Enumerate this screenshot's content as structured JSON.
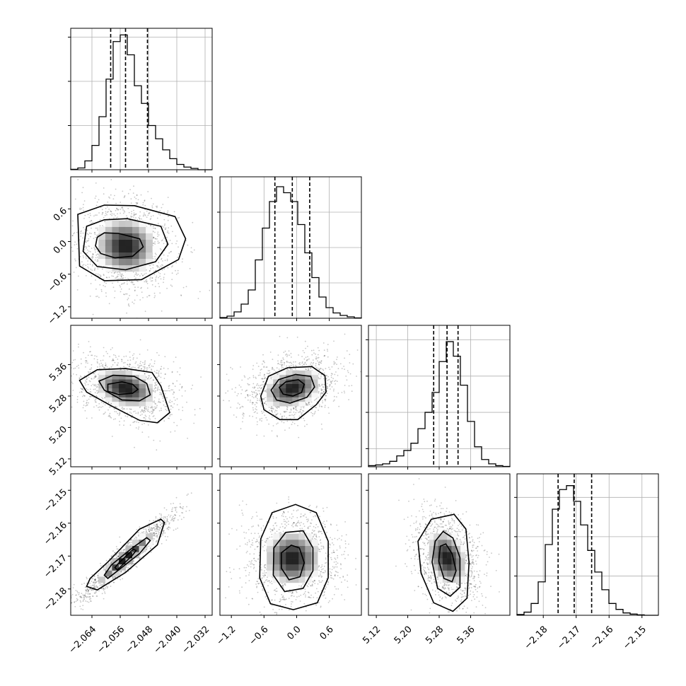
{
  "chart_data": {
    "type": "corner",
    "n_params": 4,
    "grid": true,
    "parameters": [
      {
        "index": 0,
        "range": [
          -2.07,
          -2.03
        ],
        "ticks": [
          -2.064,
          -2.056,
          -2.048,
          -2.04,
          -2.032
        ],
        "tick_labels": [
          "−2.064",
          "−2.056",
          "−2.048",
          "−2.040",
          "−2.032"
        ],
        "hist": {
          "bin_edges": [
            -2.07,
            -2.068,
            -2.066,
            -2.064,
            -2.062,
            -2.06,
            -2.058,
            -2.056,
            -2.054,
            -2.052,
            -2.05,
            -2.048,
            -2.046,
            -2.044,
            -2.042,
            -2.04,
            -2.038,
            -2.036,
            -2.034,
            -2.032,
            -2.03
          ],
          "counts": [
            1,
            4,
            20,
            55,
            120,
            205,
            290,
            305,
            260,
            190,
            150,
            100,
            70,
            45,
            25,
            12,
            6,
            3,
            0,
            0
          ],
          "y_ticks": [
            100,
            200,
            300
          ],
          "ymax": 320
        },
        "quantiles": [
          -2.0587,
          -2.0545,
          -2.0483
        ],
        "median": -2.0545
      },
      {
        "index": 1,
        "range": [
          -1.41,
          1.19
        ],
        "ticks": [
          -1.2,
          -0.6,
          0.0,
          0.6
        ],
        "tick_labels": [
          "−1.2",
          "−0.6",
          "0.0",
          "0.6"
        ],
        "hist": {
          "bin_edges": [
            -1.41,
            -1.28,
            -1.15,
            -1.02,
            -0.89,
            -0.76,
            -0.63,
            -0.5,
            -0.37,
            -0.24,
            -0.11,
            0.02,
            0.15,
            0.28,
            0.41,
            0.54,
            0.67,
            0.8,
            0.93,
            1.06,
            1.19
          ],
          "counts": [
            2,
            6,
            18,
            40,
            80,
            165,
            255,
            330,
            372,
            355,
            330,
            265,
            185,
            115,
            60,
            30,
            15,
            8,
            4,
            1
          ],
          "y_ticks": [
            100,
            200,
            300
          ],
          "ymax": 400
        },
        "quantiles": [
          -0.4,
          -0.08,
          0.24
        ],
        "median": -0.08
      },
      {
        "index": 2,
        "range": [
          5.1,
          5.46
        ],
        "ticks": [
          5.12,
          5.2,
          5.28,
          5.36
        ],
        "tick_labels": [
          "5.12",
          "5.20",
          "5.28",
          "5.36"
        ],
        "hist": {
          "bin_edges": [
            5.1,
            5.118,
            5.136,
            5.154,
            5.172,
            5.19,
            5.208,
            5.226,
            5.244,
            5.262,
            5.28,
            5.298,
            5.316,
            5.334,
            5.352,
            5.37,
            5.388,
            5.406,
            5.424,
            5.442,
            5.46
          ],
          "counts": [
            3,
            5,
            8,
            15,
            30,
            45,
            65,
            105,
            150,
            205,
            290,
            345,
            305,
            225,
            125,
            55,
            20,
            8,
            3,
            1
          ],
          "y_ticks": [
            50,
            150,
            250,
            350
          ],
          "ymax": 390
        },
        "quantiles": [
          5.266,
          5.3,
          5.328
        ],
        "median": 5.3
      },
      {
        "index": 3,
        "range": [
          -2.188,
          -2.145
        ],
        "ticks": [
          -2.18,
          -2.17,
          -2.16,
          -2.15
        ],
        "tick_labels": [
          "−2.18",
          "−2.17",
          "−2.16",
          "−2.15"
        ],
        "hist": {
          "bin_edges": [
            -2.188,
            -2.18585,
            -2.1837,
            -2.18155,
            -2.1794,
            -2.17725,
            -2.1751,
            -2.17295,
            -2.1708,
            -2.16865,
            -2.1665,
            -2.16435,
            -2.1622,
            -2.16005,
            -2.1579,
            -2.15575,
            -2.1536,
            -2.15145,
            -2.1493,
            -2.14715,
            -2.145
          ],
          "counts": [
            2,
            8,
            30,
            85,
            180,
            270,
            320,
            330,
            290,
            230,
            165,
            110,
            65,
            30,
            15,
            6,
            3,
            1,
            0,
            0
          ],
          "y_ticks": [
            100,
            200,
            300
          ],
          "ymax": 360
        },
        "quantiles": [
          -2.1755,
          -2.1706,
          -2.1653
        ],
        "median": -2.1706
      }
    ],
    "pairs": [
      {
        "x_param": 0,
        "y_param": 1,
        "correlation": -0.05,
        "center": [
          -2.0545,
          -0.08
        ],
        "contours": [
          [
            [
              -2.0625,
              0.08
            ],
            [
              -2.0605,
              0.16
            ],
            [
              -2.0565,
              0.15
            ],
            [
              -2.0505,
              0.05
            ],
            [
              -2.0495,
              -0.1
            ],
            [
              -2.0525,
              -0.27
            ],
            [
              -2.0575,
              -0.3
            ],
            [
              -2.0615,
              -0.22
            ],
            [
              -2.063,
              -0.08
            ]
          ],
          [
            [
              -2.0655,
              0.28
            ],
            [
              -2.0605,
              0.4
            ],
            [
              -2.054,
              0.42
            ],
            [
              -2.0445,
              0.28
            ],
            [
              -2.0425,
              -0.05
            ],
            [
              -2.046,
              -0.37
            ],
            [
              -2.0545,
              -0.52
            ],
            [
              -2.0625,
              -0.46
            ],
            [
              -2.0665,
              -0.18
            ]
          ],
          [
            [
              -2.068,
              0.5
            ],
            [
              -2.0605,
              0.67
            ],
            [
              -2.052,
              0.66
            ],
            [
              -2.0405,
              0.46
            ],
            [
              -2.0375,
              0.05
            ],
            [
              -2.0395,
              -0.33
            ],
            [
              -2.05,
              -0.7
            ],
            [
              -2.0605,
              -0.72
            ],
            [
              -2.0675,
              -0.45
            ]
          ]
        ]
      },
      {
        "x_param": 0,
        "y_param": 2,
        "correlation": -0.3,
        "center": [
          -2.0545,
          5.3
        ],
        "contours": [
          [
            [
              -2.0595,
              5.31
            ],
            [
              -2.0555,
              5.316
            ],
            [
              -2.0525,
              5.31
            ],
            [
              -2.051,
              5.297
            ],
            [
              -2.0525,
              5.287
            ],
            [
              -2.0565,
              5.284
            ],
            [
              -2.0595,
              5.292
            ]
          ],
          [
            [
              -2.062,
              5.318
            ],
            [
              -2.058,
              5.333
            ],
            [
              -2.052,
              5.33
            ],
            [
              -2.0485,
              5.312
            ],
            [
              -2.0475,
              5.283
            ],
            [
              -2.0505,
              5.268
            ],
            [
              -2.0555,
              5.27
            ],
            [
              -2.0605,
              5.295
            ]
          ],
          [
            [
              -2.0675,
              5.32
            ],
            [
              -2.0625,
              5.347
            ],
            [
              -2.0545,
              5.35
            ],
            [
              -2.047,
              5.34
            ],
            [
              -2.0445,
              5.305
            ],
            [
              -2.043,
              5.265
            ],
            [
              -2.042,
              5.238
            ],
            [
              -2.0455,
              5.212
            ],
            [
              -2.0505,
              5.218
            ],
            [
              -2.0585,
              5.255
            ],
            [
              -2.0655,
              5.29
            ]
          ]
        ]
      },
      {
        "x_param": 1,
        "y_param": 2,
        "correlation": 0.3,
        "center": [
          -0.08,
          5.3
        ],
        "contours": [
          [
            [
              -0.32,
              5.302
            ],
            [
              -0.2,
              5.316
            ],
            [
              0.03,
              5.322
            ],
            [
              0.14,
              5.31
            ],
            [
              0.09,
              5.289
            ],
            [
              -0.07,
              5.28
            ],
            [
              -0.25,
              5.285
            ]
          ],
          [
            [
              -0.47,
              5.295
            ],
            [
              -0.33,
              5.322
            ],
            [
              -0.02,
              5.335
            ],
            [
              0.26,
              5.33
            ],
            [
              0.33,
              5.303
            ],
            [
              0.19,
              5.277
            ],
            [
              -0.12,
              5.262
            ],
            [
              -0.37,
              5.27
            ]
          ],
          [
            [
              -0.66,
              5.28
            ],
            [
              -0.52,
              5.33
            ],
            [
              -0.17,
              5.352
            ],
            [
              0.28,
              5.355
            ],
            [
              0.52,
              5.332
            ],
            [
              0.54,
              5.29
            ],
            [
              0.36,
              5.258
            ],
            [
              0.02,
              5.22
            ],
            [
              -0.31,
              5.22
            ],
            [
              -0.6,
              5.245
            ]
          ]
        ]
      },
      {
        "x_param": 0,
        "y_param": 3,
        "correlation": 0.95,
        "center": [
          -2.0545,
          -2.1706
        ],
        "contours": [
          [
            [
              -2.0575,
              -2.1735
            ],
            [
              -2.0568,
              -2.1742
            ],
            [
              -2.0525,
              -2.1697
            ],
            [
              -2.0515,
              -2.1683
            ],
            [
              -2.0523,
              -2.1679
            ],
            [
              -2.0565,
              -2.1722
            ]
          ],
          [
            [
              -2.0605,
              -2.1758
            ],
            [
              -2.0595,
              -2.1768
            ],
            [
              -2.0505,
              -2.1692
            ],
            [
              -2.0475,
              -2.1653
            ],
            [
              -2.0485,
              -2.1644
            ],
            [
              -2.0528,
              -2.1677
            ],
            [
              -2.0585,
              -2.1727
            ]
          ],
          [
            [
              -2.0655,
              -2.1792
            ],
            [
              -2.0625,
              -2.1803
            ],
            [
              -2.0545,
              -2.175
            ],
            [
              -2.0455,
              -2.1666
            ],
            [
              -2.0435,
              -2.1598
            ],
            [
              -2.0445,
              -2.1588
            ],
            [
              -2.0505,
              -2.1618
            ],
            [
              -2.0595,
              -2.1718
            ],
            [
              -2.0645,
              -2.1768
            ]
          ]
        ]
      },
      {
        "x_param": 1,
        "y_param": 3,
        "correlation": 0.0,
        "center": [
          -0.08,
          -2.1706
        ],
        "contours": [
          [
            [
              -0.28,
              -2.169
            ],
            [
              -0.1,
              -2.1667
            ],
            [
              0.05,
              -2.1675
            ],
            [
              0.14,
              -2.172
            ],
            [
              0.06,
              -2.1763
            ],
            [
              -0.14,
              -2.1772
            ],
            [
              -0.28,
              -2.1737
            ]
          ],
          [
            [
              -0.42,
              -2.1675
            ],
            [
              -0.2,
              -2.1628
            ],
            [
              0.12,
              -2.1623
            ],
            [
              0.3,
              -2.1675
            ],
            [
              0.3,
              -2.1745
            ],
            [
              0.12,
              -2.1798
            ],
            [
              -0.22,
              -2.1808
            ],
            [
              -0.43,
              -2.1758
            ]
          ],
          [
            [
              -0.66,
              -2.1648
            ],
            [
              -0.45,
              -2.1568
            ],
            [
              -0.02,
              -2.1543
            ],
            [
              0.36,
              -2.1568
            ],
            [
              0.58,
              -2.1655
            ],
            [
              0.58,
              -2.1766
            ],
            [
              0.38,
              -2.1842
            ],
            [
              -0.06,
              -2.1863
            ],
            [
              -0.48,
              -2.1845
            ],
            [
              -0.68,
              -2.1766
            ]
          ]
        ]
      },
      {
        "x_param": 2,
        "y_param": 3,
        "correlation": -0.3,
        "center": [
          5.3,
          -2.1706
        ],
        "contours": [
          [
            [
              5.283,
              -2.167
            ],
            [
              5.297,
              -2.1663
            ],
            [
              5.313,
              -2.1693
            ],
            [
              5.323,
              -2.1745
            ],
            [
              5.313,
              -2.1778
            ],
            [
              5.292,
              -2.1768
            ],
            [
              5.279,
              -2.1715
            ]
          ],
          [
            [
              5.27,
              -2.1655
            ],
            [
              5.29,
              -2.1625
            ],
            [
              5.315,
              -2.1645
            ],
            [
              5.333,
              -2.1705
            ],
            [
              5.333,
              -2.1795
            ],
            [
              5.308,
              -2.1822
            ],
            [
              5.276,
              -2.1798
            ],
            [
              5.262,
              -2.1718
            ]
          ],
          [
            [
              5.226,
              -2.1655
            ],
            [
              5.26,
              -2.1588
            ],
            [
              5.318,
              -2.1573
            ],
            [
              5.348,
              -2.1618
            ],
            [
              5.356,
              -2.172
            ],
            [
              5.351,
              -2.1828
            ],
            [
              5.315,
              -2.1868
            ],
            [
              5.266,
              -2.1842
            ],
            [
              5.234,
              -2.1752
            ]
          ]
        ]
      }
    ]
  }
}
